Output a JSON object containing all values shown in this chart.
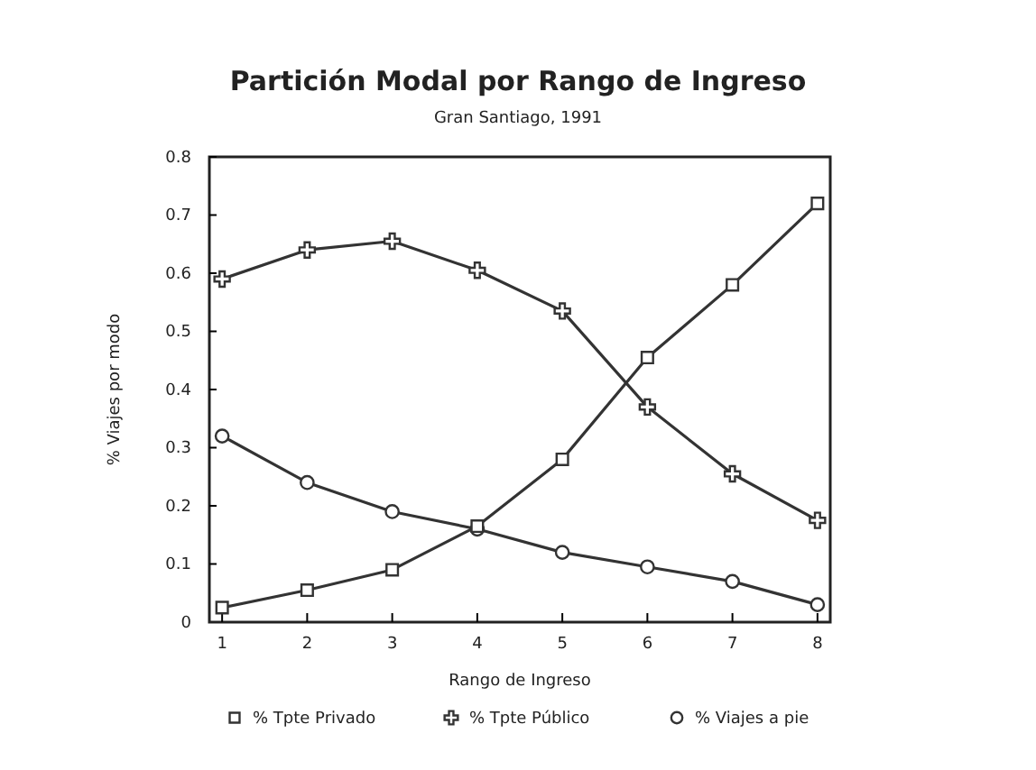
{
  "chart_data": {
    "type": "line",
    "title": "Partición Modal por Rango de Ingreso",
    "subtitle": "Gran Santiago, 1991",
    "xlabel": "Rango de Ingreso",
    "ylabel": "% Viajes por modo",
    "x": [
      1,
      2,
      3,
      4,
      5,
      6,
      7,
      8
    ],
    "xlim": [
      0.85,
      8.15
    ],
    "xticks": [
      1,
      2,
      3,
      4,
      5,
      6,
      7,
      8
    ],
    "ylim": [
      0,
      0.8
    ],
    "yticks": [
      0,
      0.1,
      0.2,
      0.3,
      0.4,
      0.5,
      0.6,
      0.7,
      0.8
    ],
    "grid": false,
    "legend": "bottom",
    "line_style": "solid",
    "series": [
      {
        "name": "% Tpte Privado",
        "color": "#333333",
        "marker": "square",
        "values": [
          0.025,
          0.055,
          0.09,
          0.165,
          0.28,
          0.455,
          0.58,
          0.72
        ]
      },
      {
        "name": "% Tpte Público",
        "color": "#333333",
        "marker": "cross",
        "values": [
          0.59,
          0.64,
          0.655,
          0.605,
          0.535,
          0.37,
          0.255,
          0.175
        ]
      },
      {
        "name": "% Viajes a pie",
        "color": "#333333",
        "marker": "circle",
        "values": [
          0.32,
          0.24,
          0.19,
          0.16,
          0.12,
          0.095,
          0.07,
          0.03
        ]
      }
    ]
  }
}
